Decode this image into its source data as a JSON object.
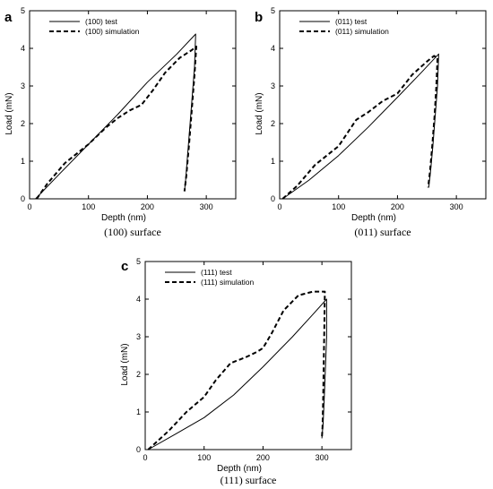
{
  "chart_data": [
    {
      "type": "line",
      "panel_label": "a",
      "caption": "(100) surface",
      "xlabel": "Depth (nm)",
      "ylabel": "Load (mN)",
      "xlim": [
        0,
        350
      ],
      "ylim": [
        0,
        5
      ],
      "xticks": [
        0,
        100,
        200,
        300
      ],
      "yticks": [
        0,
        1,
        2,
        3,
        4,
        5
      ],
      "legend_position": "top-left",
      "series": [
        {
          "name": "(100) test",
          "style": "solid",
          "points": [
            [
              10,
              0
            ],
            [
              50,
              0.65
            ],
            [
              100,
              1.45
            ],
            [
              150,
              2.25
            ],
            [
              200,
              3.1
            ],
            [
              250,
              3.85
            ],
            [
              282,
              4.38
            ],
            [
              280,
              3.5
            ],
            [
              275,
              2.5
            ],
            [
              270,
              1.5
            ],
            [
              265,
              0.5
            ],
            [
              263,
              0.2
            ]
          ]
        },
        {
          "name": "(100) simulation",
          "style": "dashed",
          "points": [
            [
              12,
              0
            ],
            [
              30,
              0.4
            ],
            [
              60,
              0.95
            ],
            [
              100,
              1.45
            ],
            [
              130,
              1.9
            ],
            [
              150,
              2.15
            ],
            [
              170,
              2.35
            ],
            [
              190,
              2.5
            ],
            [
              210,
              2.9
            ],
            [
              230,
              3.35
            ],
            [
              255,
              3.75
            ],
            [
              275,
              3.95
            ],
            [
              283,
              4.05
            ],
            [
              280,
              3.3
            ],
            [
              276,
              2.5
            ],
            [
              271,
              1.5
            ],
            [
              266,
              0.6
            ],
            [
              263,
              0.2
            ]
          ]
        }
      ]
    },
    {
      "type": "line",
      "panel_label": "b",
      "caption": "(011) surface",
      "xlabel": "Depth (nm)",
      "ylabel": "Load (mN)",
      "xlim": [
        0,
        350
      ],
      "ylim": [
        0,
        5
      ],
      "xticks": [
        0,
        100,
        200,
        300
      ],
      "yticks": [
        0,
        1,
        2,
        3,
        4,
        5
      ],
      "legend_position": "top-left",
      "series": [
        {
          "name": "(011) test",
          "style": "solid",
          "points": [
            [
              5,
              0
            ],
            [
              50,
              0.5
            ],
            [
              100,
              1.15
            ],
            [
              150,
              1.9
            ],
            [
              200,
              2.7
            ],
            [
              240,
              3.35
            ],
            [
              270,
              3.85
            ],
            [
              268,
              3.0
            ],
            [
              264,
              2.2
            ],
            [
              260,
              1.4
            ],
            [
              256,
              0.7
            ],
            [
              253,
              0.3
            ]
          ]
        },
        {
          "name": "(011) simulation",
          "style": "dashed",
          "points": [
            [
              5,
              0
            ],
            [
              30,
              0.35
            ],
            [
              60,
              0.9
            ],
            [
              100,
              1.4
            ],
            [
              130,
              2.1
            ],
            [
              150,
              2.3
            ],
            [
              175,
              2.6
            ],
            [
              200,
              2.8
            ],
            [
              225,
              3.3
            ],
            [
              250,
              3.65
            ],
            [
              262,
              3.8
            ],
            [
              268,
              3.75
            ],
            [
              266,
              3.0
            ],
            [
              263,
              2.2
            ],
            [
              259,
              1.4
            ],
            [
              255,
              0.7
            ],
            [
              252,
              0.3
            ]
          ]
        }
      ]
    },
    {
      "type": "line",
      "panel_label": "c",
      "caption": "(111) surface",
      "xlabel": "Depth (nm)",
      "ylabel": "Load (mN)",
      "xlim": [
        0,
        350
      ],
      "ylim": [
        0,
        5
      ],
      "xticks": [
        0,
        100,
        200,
        300
      ],
      "yticks": [
        0,
        1,
        2,
        3,
        4,
        5
      ],
      "legend_position": "top-left",
      "series": [
        {
          "name": "(111) test",
          "style": "solid",
          "points": [
            [
              5,
              0
            ],
            [
              50,
              0.4
            ],
            [
              100,
              0.85
            ],
            [
              150,
              1.45
            ],
            [
              200,
              2.2
            ],
            [
              250,
              3.0
            ],
            [
              285,
              3.6
            ],
            [
              308,
              4.0
            ],
            [
              308,
              3.0
            ],
            [
              306,
              2.2
            ],
            [
              304,
              1.4
            ],
            [
              302,
              0.7
            ],
            [
              300,
              0.3
            ]
          ]
        },
        {
          "name": "(111) simulation",
          "style": "dashed",
          "points": [
            [
              5,
              0
            ],
            [
              40,
              0.5
            ],
            [
              70,
              1.0
            ],
            [
              100,
              1.4
            ],
            [
              120,
              1.85
            ],
            [
              145,
              2.3
            ],
            [
              170,
              2.45
            ],
            [
              190,
              2.6
            ],
            [
              200,
              2.7
            ],
            [
              215,
              3.1
            ],
            [
              235,
              3.7
            ],
            [
              260,
              4.1
            ],
            [
              285,
              4.2
            ],
            [
              305,
              4.2
            ],
            [
              304,
              3.2
            ],
            [
              303,
              2.2
            ],
            [
              302,
              1.3
            ],
            [
              301,
              0.6
            ],
            [
              300,
              0.3
            ]
          ]
        }
      ]
    }
  ]
}
